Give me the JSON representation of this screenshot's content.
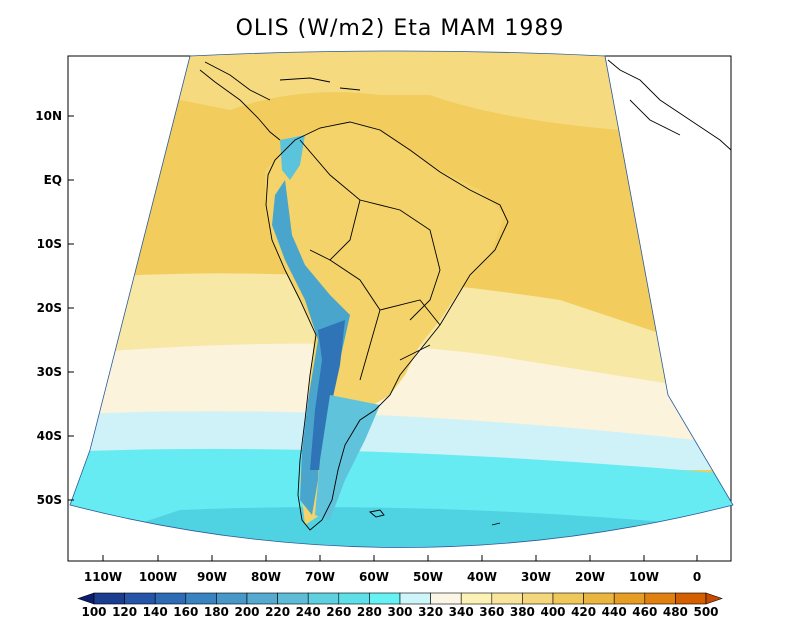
{
  "title": "OLIS (W/m2) Eta MAM 1989",
  "latitude_labels": [
    "10N",
    "EQ",
    "10S",
    "20S",
    "30S",
    "40S",
    "50S"
  ],
  "longitude_labels": [
    "110W",
    "100W",
    "90W",
    "80W",
    "70W",
    "60W",
    "50W",
    "40W",
    "30W",
    "20W",
    "10W",
    "0"
  ],
  "colorbar": {
    "values": [
      "100",
      "120",
      "140",
      "160",
      "180",
      "200",
      "220",
      "240",
      "260",
      "280",
      "300",
      "320",
      "340",
      "360",
      "380",
      "400",
      "420",
      "440",
      "460",
      "480",
      "500"
    ],
    "colors": [
      "#0a1d6e",
      "#1a3d8f",
      "#2455a8",
      "#2e6bb5",
      "#3983c0",
      "#4797c8",
      "#56a9cf",
      "#5fbcd6",
      "#5ed0df",
      "#5fe0e8",
      "#66f2f4",
      "#cdf6fa",
      "#fbf6e6",
      "#fdf2b6",
      "#f9e59b",
      "#f4d77c",
      "#efc85c",
      "#ebb63f",
      "#e59d23",
      "#df8010",
      "#d35f00",
      "#c54a00"
    ]
  }
}
